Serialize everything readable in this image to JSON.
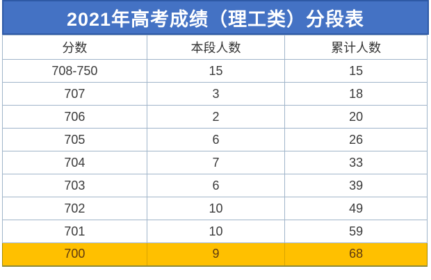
{
  "title": "2021年高考成绩（理工类）分段表",
  "colors": {
    "banner_bg": "#4472C4",
    "banner_border": "#2E59A5",
    "banner_text": "#FFFFFF",
    "table_border": "#9FB4C9",
    "cell_text": "#3A3A3A",
    "highlight_bg": "#FFC000",
    "highlight_border": "#A38A00",
    "highlight_text": "#5E3A11",
    "page_bg": "#FFFFFF"
  },
  "chart_data": {
    "type": "table",
    "title": "2021年高考成绩（理工类）分段表",
    "columns": [
      "分数",
      "本段人数",
      "累计人数"
    ],
    "rows": [
      [
        "708-750",
        "15",
        "15"
      ],
      [
        "707",
        "3",
        "18"
      ],
      [
        "706",
        "2",
        "20"
      ],
      [
        "705",
        "6",
        "26"
      ],
      [
        "704",
        "7",
        "33"
      ],
      [
        "703",
        "6",
        "39"
      ],
      [
        "702",
        "10",
        "49"
      ],
      [
        "701",
        "10",
        "59"
      ],
      [
        "700",
        "9",
        "68"
      ]
    ],
    "highlighted_row_index": 8,
    "layout_hints": {
      "header_row_background": "#FFFFFF",
      "highlighted_row_background": "#FFC000",
      "grid": true
    }
  }
}
